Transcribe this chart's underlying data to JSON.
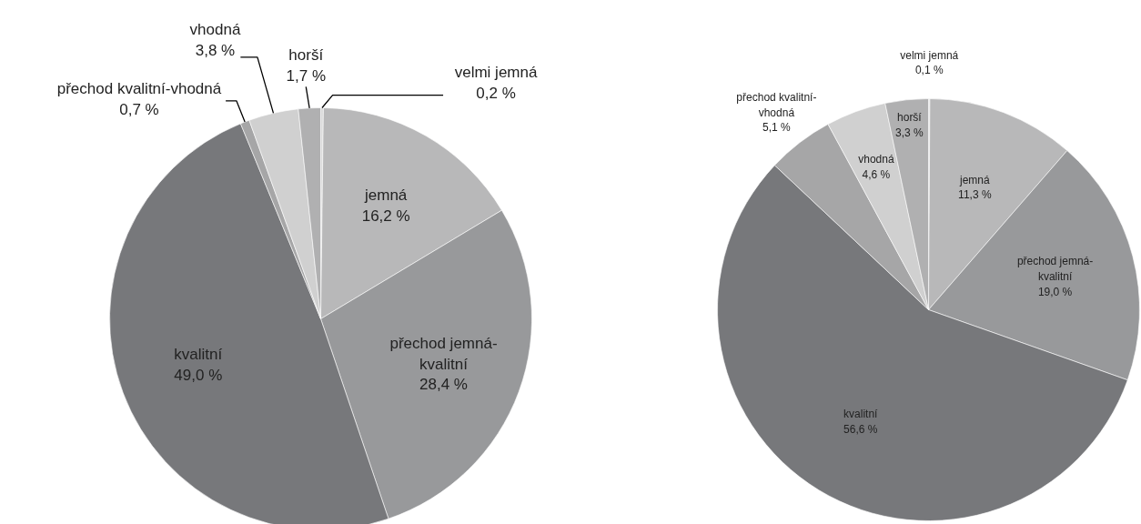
{
  "chart_data": [
    {
      "type": "pie",
      "categories": [
        "velmi jemná",
        "jemná",
        "přechod jemná-kvalitní",
        "kvalitní",
        "přechod kvalitní-vhodná",
        "vhodná",
        "horší"
      ],
      "values": [
        0.2,
        16.2,
        28.4,
        49.0,
        0.7,
        3.8,
        1.7
      ],
      "value_labels": [
        "0,2 %",
        "16,2 %",
        "28,4 %",
        "49,0 %",
        "0,7 %",
        "3,8 %",
        "1,7 %"
      ],
      "colors": [
        "#d9d9d9",
        "#b8b8b9",
        "#98999b",
        "#77787b",
        "#a6a6a7",
        "#d0d0d0",
        "#b0b0b1"
      ]
    },
    {
      "type": "pie",
      "categories": [
        "velmi jemná",
        "jemná",
        "přechod jemná-kvalitní",
        "kvalitní",
        "přechod kvalitní-vhodná",
        "vhodná",
        "horší"
      ],
      "values": [
        0.1,
        11.3,
        19.0,
        56.6,
        5.1,
        4.6,
        3.3
      ],
      "value_labels": [
        "0,1 %",
        "11,3 %",
        "19,0 %",
        "56,6 %",
        "5,1 %",
        "4,6 %",
        "3,3 %"
      ],
      "colors": [
        "#d9d9d9",
        "#b8b8b9",
        "#98999b",
        "#77787b",
        "#a6a6a7",
        "#d0d0d0",
        "#b0b0b1"
      ]
    }
  ]
}
